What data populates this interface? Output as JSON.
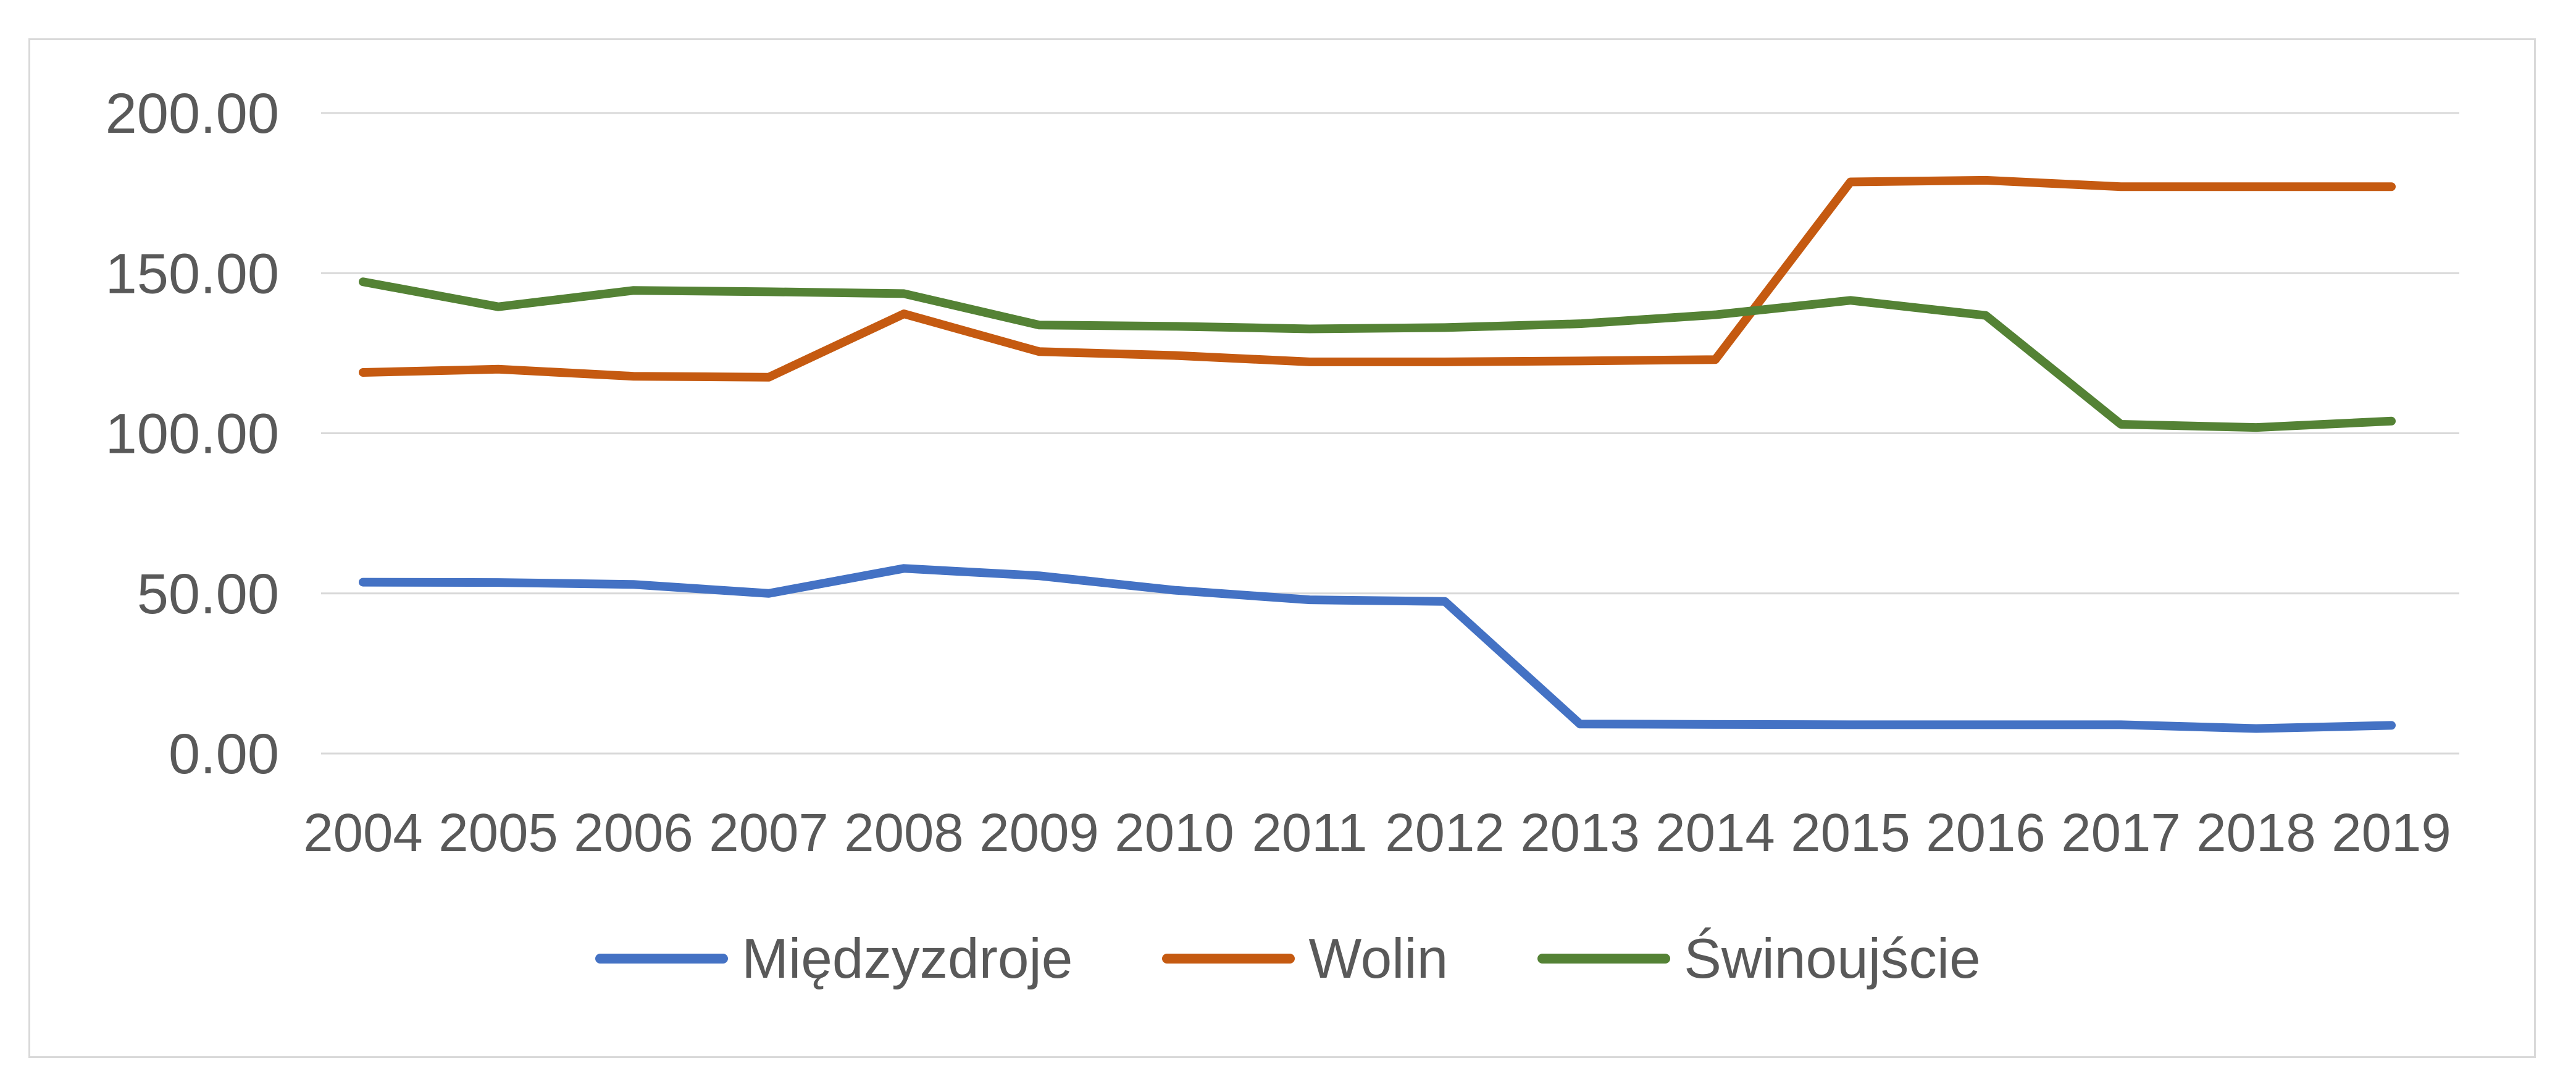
{
  "chart_data": {
    "type": "line",
    "title": "",
    "xlabel": "",
    "ylabel": "",
    "categories": [
      "2004",
      "2005",
      "2006",
      "2007",
      "2008",
      "2009",
      "2010",
      "2011",
      "2012",
      "2013",
      "2014",
      "2015",
      "2016",
      "2017",
      "2018",
      "2019"
    ],
    "series": [
      {
        "name": "Międzyzdroje",
        "color": "#4472C4",
        "values": [
          53.5,
          53.4,
          52.8,
          50.0,
          57.8,
          55.5,
          51.0,
          48.0,
          47.5,
          9.2,
          9.1,
          9.0,
          9.0,
          9.0,
          7.8,
          8.8
        ]
      },
      {
        "name": "Wolin",
        "color": "#C55A11",
        "values": [
          119.0,
          120.0,
          117.8,
          117.5,
          137.3,
          125.5,
          124.3,
          122.3,
          122.3,
          122.6,
          123.0,
          178.5,
          179.0,
          177.0,
          177.0,
          177.0
        ]
      },
      {
        "name": "Świnoujście",
        "color": "#548235",
        "values": [
          147.3,
          139.5,
          144.6,
          144.2,
          143.6,
          133.8,
          133.4,
          132.6,
          133.0,
          134.2,
          137.0,
          141.5,
          136.8,
          102.8,
          101.8,
          103.8
        ]
      }
    ],
    "yticks": [
      {
        "value": 0,
        "label": "0.00"
      },
      {
        "value": 50,
        "label": "50.00"
      },
      {
        "value": 100,
        "label": "100.00"
      },
      {
        "value": 150,
        "label": "150.00"
      },
      {
        "value": 200,
        "label": "200.00"
      }
    ],
    "ylim": [
      0,
      200
    ],
    "grid": "horizontal",
    "legend_position": "bottom",
    "colors": {
      "gridline": "#D9D9D9",
      "frame_border": "#D9D9D9",
      "tick_text": "#595959",
      "background": "#FFFFFF"
    }
  }
}
